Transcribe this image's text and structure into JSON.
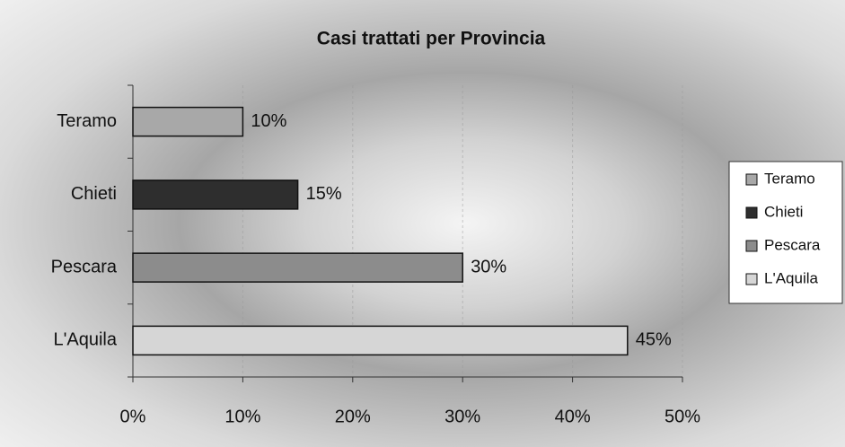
{
  "chart_data": {
    "type": "barh",
    "title": "Casi trattati per Provincia",
    "categories": [
      "Teramo",
      "Chieti",
      "Pescara",
      "L'Aquila"
    ],
    "values": [
      10,
      15,
      30,
      45
    ],
    "value_labels": [
      "10%",
      "15%",
      "30%",
      "45%"
    ],
    "colors": [
      "#a8a8a8",
      "#2e2e2e",
      "#8c8c8c",
      "#d6d6d6"
    ],
    "xlim": [
      0,
      50
    ],
    "xticks": [
      {
        "value": 0,
        "label": "0%"
      },
      {
        "value": 10,
        "label": "10%"
      },
      {
        "value": 20,
        "label": "20%"
      },
      {
        "value": 30,
        "label": "30%"
      },
      {
        "value": 40,
        "label": "40%"
      },
      {
        "value": 50,
        "label": "50%"
      }
    ],
    "grid": true,
    "legend": "right"
  }
}
